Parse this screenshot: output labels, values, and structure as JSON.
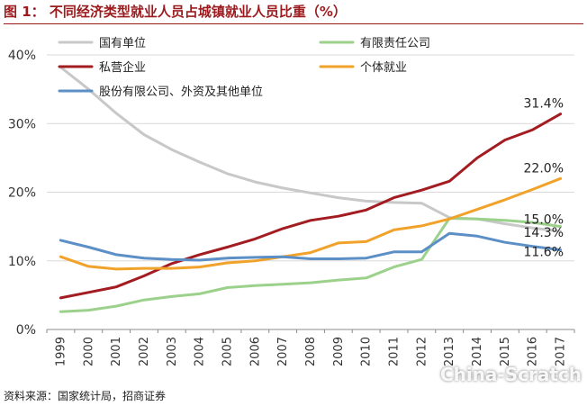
{
  "figure": {
    "title": "图 1：  不同经济类型就业人员占城镇就业人员比重（%）",
    "source": "资料来源：国家统计局，招商证券",
    "watermark": "China-Scratch"
  },
  "chart_data": {
    "type": "line",
    "title": "",
    "xlabel": "",
    "ylabel": "",
    "categories": [
      "1999",
      "2000",
      "2001",
      "2002",
      "2003",
      "2004",
      "2005",
      "2006",
      "2007",
      "2008",
      "2009",
      "2010",
      "2011",
      "2012",
      "2013",
      "2014",
      "2015",
      "2016",
      "2017"
    ],
    "ylim": [
      0,
      40
    ],
    "yticks": [
      "0%",
      "10%",
      "20%",
      "30%",
      "40%"
    ],
    "grid": true,
    "legend_position": "top",
    "series": [
      {
        "name": "国有单位",
        "color": "#c8c8c8",
        "values": [
          38.2,
          35.0,
          31.5,
          28.4,
          26.2,
          24.4,
          22.7,
          21.5,
          20.6,
          19.9,
          19.2,
          18.7,
          18.5,
          18.4,
          16.3,
          16.1,
          15.4,
          14.8,
          14.3
        ],
        "end_label": "14.3%"
      },
      {
        "name": "有限责任公司",
        "color": "#9cd18b",
        "values": [
          2.6,
          2.8,
          3.4,
          4.3,
          4.8,
          5.2,
          6.1,
          6.4,
          6.6,
          6.8,
          7.2,
          7.5,
          9.1,
          10.2,
          16.2,
          16.1,
          15.9,
          15.6,
          15.0
        ],
        "end_label": "15.0%"
      },
      {
        "name": "私营企业",
        "color": "#a31c21",
        "values": [
          4.6,
          5.4,
          6.2,
          7.8,
          9.6,
          10.9,
          12.0,
          13.2,
          14.7,
          15.9,
          16.5,
          17.4,
          19.2,
          20.3,
          21.6,
          25.0,
          27.6,
          29.1,
          31.4
        ],
        "end_label": "31.4%"
      },
      {
        "name": "个体就业",
        "color": "#f0a22a",
        "values": [
          10.6,
          9.2,
          8.8,
          8.9,
          8.9,
          9.1,
          9.7,
          10.0,
          10.6,
          11.2,
          12.6,
          12.8,
          14.5,
          15.1,
          16.1,
          17.5,
          18.9,
          20.4,
          22.0
        ],
        "end_label": "22.0%"
      },
      {
        "name": "股份有限公司、外资及其他单位",
        "color": "#5b8fc6",
        "values": [
          13.0,
          12.0,
          10.9,
          10.4,
          10.2,
          10.1,
          10.4,
          10.5,
          10.6,
          10.3,
          10.3,
          10.4,
          11.3,
          11.3,
          14.0,
          13.6,
          12.7,
          12.1,
          11.6
        ],
        "end_label": "11.6%"
      }
    ]
  }
}
